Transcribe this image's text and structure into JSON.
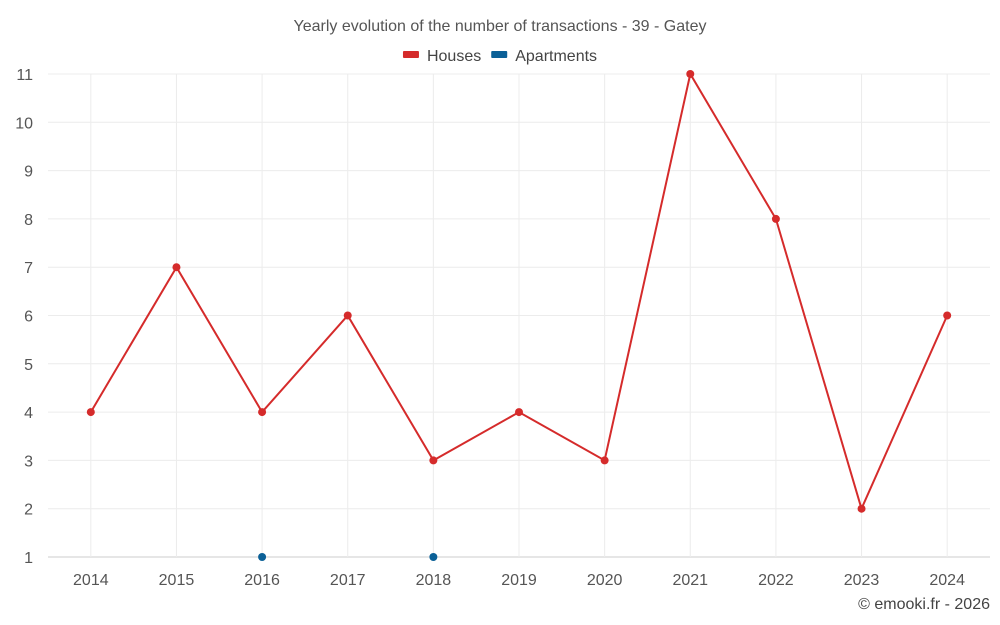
{
  "chart_data": {
    "type": "line",
    "title": "Yearly evolution of the number of transactions - 39 - Gatey",
    "categories": [
      "2014",
      "2015",
      "2016",
      "2017",
      "2018",
      "2019",
      "2020",
      "2021",
      "2022",
      "2023",
      "2024"
    ],
    "series": [
      {
        "name": "Houses",
        "color": "#d52b2b",
        "values": [
          4,
          7,
          4,
          6,
          3,
          4,
          3,
          11,
          8,
          2,
          6
        ]
      },
      {
        "name": "Apartments",
        "color": "#0b6097",
        "values": [
          null,
          null,
          1,
          null,
          1,
          null,
          null,
          null,
          null,
          null,
          null
        ]
      }
    ],
    "yticks": [
      1,
      2,
      3,
      4,
      5,
      6,
      7,
      8,
      9,
      10,
      11
    ],
    "ylim": [
      1,
      11
    ],
    "grid": true,
    "legend": "top-center",
    "xlabel": "",
    "ylabel": ""
  },
  "credit": "© emooki.fr - 2026"
}
